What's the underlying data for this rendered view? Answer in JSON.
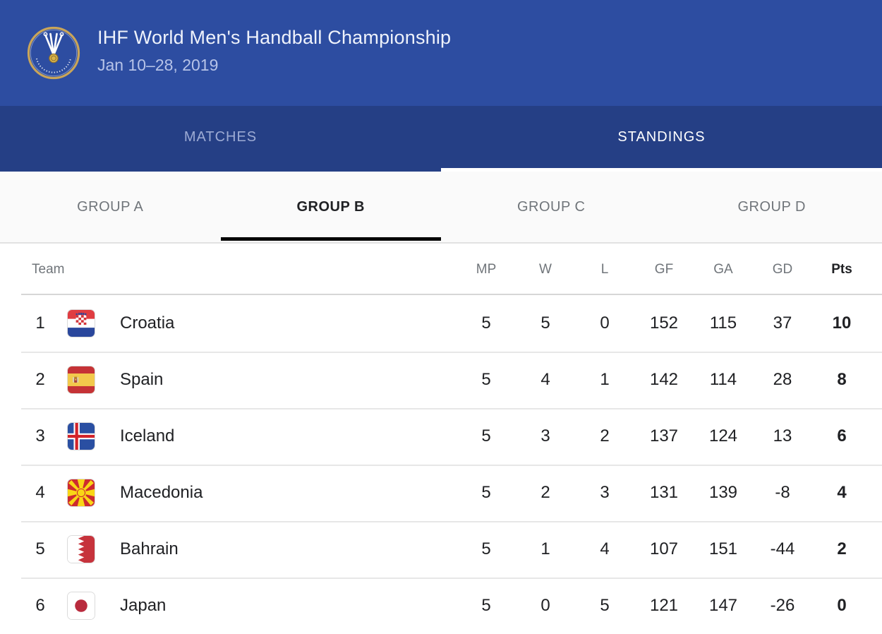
{
  "header": {
    "title": "IHF World Men's Handball Championship",
    "subtitle": "Jan 10–28, 2019",
    "logo": "ihf-federation-logo"
  },
  "tabs": [
    {
      "label": "MATCHES",
      "active": false
    },
    {
      "label": "STANDINGS",
      "active": true
    }
  ],
  "group_tabs": [
    {
      "label": "GROUP A",
      "active": false
    },
    {
      "label": "GROUP B",
      "active": true
    },
    {
      "label": "GROUP C",
      "active": false
    },
    {
      "label": "GROUP D",
      "active": false
    }
  ],
  "standings": {
    "columns": {
      "team": "Team",
      "mp": "MP",
      "w": "W",
      "l": "L",
      "gf": "GF",
      "ga": "GA",
      "gd": "GD",
      "pts": "Pts"
    },
    "rows": [
      {
        "rank": "1",
        "team": "Croatia",
        "flag": "croatia",
        "mp": "5",
        "w": "5",
        "l": "0",
        "gf": "152",
        "ga": "115",
        "gd": "37",
        "pts": "10"
      },
      {
        "rank": "2",
        "team": "Spain",
        "flag": "spain",
        "mp": "5",
        "w": "4",
        "l": "1",
        "gf": "142",
        "ga": "114",
        "gd": "28",
        "pts": "8"
      },
      {
        "rank": "3",
        "team": "Iceland",
        "flag": "iceland",
        "mp": "5",
        "w": "3",
        "l": "2",
        "gf": "137",
        "ga": "124",
        "gd": "13",
        "pts": "6"
      },
      {
        "rank": "4",
        "team": "Macedonia",
        "flag": "macedonia",
        "mp": "5",
        "w": "2",
        "l": "3",
        "gf": "131",
        "ga": "139",
        "gd": "-8",
        "pts": "4"
      },
      {
        "rank": "5",
        "team": "Bahrain",
        "flag": "bahrain",
        "mp": "5",
        "w": "1",
        "l": "4",
        "gf": "107",
        "ga": "151",
        "gd": "-44",
        "pts": "2"
      },
      {
        "rank": "6",
        "team": "Japan",
        "flag": "japan",
        "mp": "5",
        "w": "0",
        "l": "5",
        "gf": "121",
        "ga": "147",
        "gd": "-26",
        "pts": "0"
      }
    ]
  },
  "colors": {
    "header_bg": "#2d4da1",
    "tabbar_bg": "#253f85",
    "active_tab_underline": "#ffffff",
    "inactive_tab_text": "#9dabd4",
    "group_bar_bg": "#fafafa",
    "active_group_underline": "#050505",
    "inactive_group_text": "#70757a",
    "text_primary": "#202124",
    "text_secondary": "#70757a",
    "divider": "#e7e7e7"
  }
}
